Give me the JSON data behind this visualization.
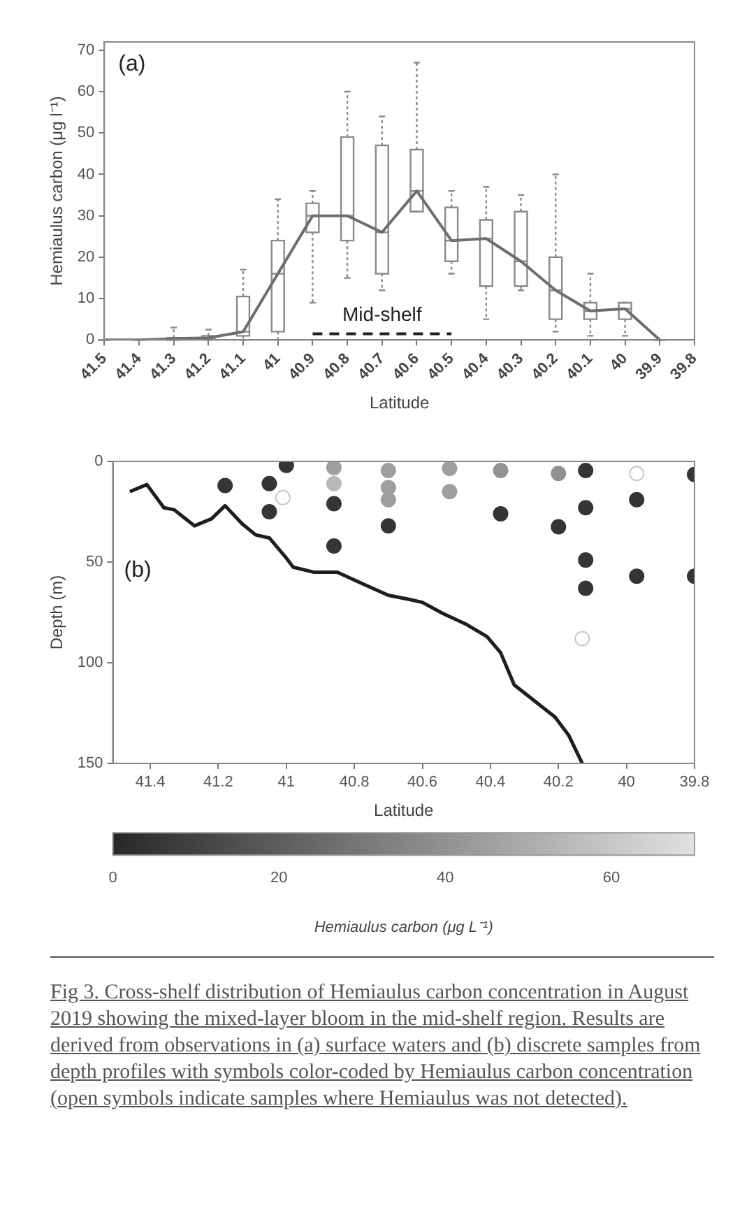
{
  "chart_data": [
    {
      "type": "box",
      "xlabel": "Latitude",
      "ylabel": "Hemiaulus carbon (μg l⁻¹)",
      "categories": [
        "41.5",
        "41.4",
        "41.3",
        "41.2",
        "41.1",
        "41",
        "40.9",
        "40.8",
        "40.7",
        "40.6",
        "40.5",
        "40.4",
        "40.3",
        "40.2",
        "40.1",
        "40",
        "39.9",
        "39.8"
      ],
      "ylim": [
        0,
        72
      ],
      "yticks": [
        0,
        10,
        20,
        30,
        40,
        50,
        60,
        70
      ],
      "series": [
        {
          "type": "box",
          "color": "#8a8a8a",
          "boxes": [
            {
              "low": 0,
              "q1": 0,
              "median": 0,
              "q3": 0,
              "high": 0
            },
            {
              "low": 0,
              "q1": 0,
              "median": 0,
              "q3": 0,
              "high": 0
            },
            {
              "low": 0,
              "q1": 0,
              "median": 0.3,
              "q3": 0.5,
              "high": 3
            },
            {
              "low": 0,
              "q1": 0.2,
              "median": 0.5,
              "q3": 1,
              "high": 2.5
            },
            {
              "low": 0,
              "q1": 1,
              "median": 2,
              "q3": 10.5,
              "high": 17
            },
            {
              "low": 0,
              "q1": 2,
              "median": 16,
              "q3": 24,
              "high": 34
            },
            {
              "low": 9,
              "q1": 26,
              "median": 30,
              "q3": 33,
              "high": 36
            },
            {
              "low": 15,
              "q1": 24,
              "median": 30,
              "q3": 49,
              "high": 60
            },
            {
              "low": 12,
              "q1": 16,
              "median": 26,
              "q3": 47,
              "high": 54
            },
            {
              "low": 31,
              "q1": 31,
              "median": 36,
              "q3": 46,
              "high": 67
            },
            {
              "low": 16,
              "q1": 19,
              "median": 24,
              "q3": 32,
              "high": 36
            },
            {
              "low": 5,
              "q1": 13,
              "median": 24.5,
              "q3": 29,
              "high": 37
            },
            {
              "low": 12,
              "q1": 13,
              "median": 19,
              "q3": 31,
              "high": 35
            },
            {
              "low": 2,
              "q1": 5,
              "median": 12,
              "q3": 20,
              "high": 40
            },
            {
              "low": 1,
              "q1": 5,
              "median": 7,
              "q3": 9,
              "high": 16
            },
            {
              "low": 1,
              "q1": 5,
              "median": 7.5,
              "q3": 9,
              "high": 9
            },
            {
              "low": 0,
              "q1": 0,
              "median": 0,
              "q3": 0,
              "high": 0
            },
            null
          ]
        },
        {
          "type": "line",
          "color": "#6e6e6e",
          "values": [
            0,
            0,
            0.3,
            0.5,
            2,
            16,
            30,
            30,
            26,
            36,
            24,
            24.5,
            19,
            12,
            7,
            7.5,
            0,
            null
          ]
        },
        {
          "type": "line",
          "name": "Mid-shelf",
          "color": "#222222",
          "line_style": "dashed",
          "values": [
            null,
            null,
            null,
            null,
            null,
            null,
            1.5,
            1.5,
            1.5,
            1.5,
            1.5,
            null,
            null,
            null,
            null,
            null,
            null,
            null
          ]
        }
      ],
      "annotations": [
        "(a)"
      ]
    },
    {
      "type": "scatter",
      "xlabel": "Latitude",
      "ylabel": "Depth (m)",
      "xlim": [
        41.51,
        39.8
      ],
      "xticks": [
        41.4,
        41.2,
        41,
        40.8,
        40.6,
        40.4,
        40.2,
        40,
        39.8
      ],
      "ylim": [
        150,
        0
      ],
      "yticks": [
        0,
        50,
        100,
        150
      ],
      "clim": [
        0,
        70
      ],
      "cticks": [
        0,
        20,
        40,
        60
      ],
      "clabel": "Hemiaulus carbon (μg L⁻¹)",
      "series": [
        {
          "type": "scatter",
          "marker": "circle",
          "x": [
            41.0,
            41.18,
            41.05,
            41.05,
            40.86,
            40.86,
            40.86,
            40.86,
            40.7,
            40.7,
            40.7,
            40.7,
            40.52,
            40.52,
            40.37,
            40.37,
            40.2,
            40.2,
            40.12,
            40.12,
            40.12,
            40.12,
            39.97,
            39.97,
            39.8,
            39.8
          ],
          "values": [
            2,
            12,
            11,
            25,
            3,
            11,
            21,
            42,
            4.5,
            13,
            19,
            32,
            3.5,
            15,
            4.5,
            26,
            6,
            32.5,
            4.5,
            23,
            49,
            63,
            19,
            57,
            6.5,
            57
          ],
          "colors": [
            "#353535",
            "#353535",
            "#353535",
            "#353535",
            "#9f9f9f",
            "#b9b9b9",
            "#353535",
            "#353535",
            "#9f9f9f",
            "#9f9f9f",
            "#9f9f9f",
            "#353535",
            "#9f9f9f",
            "#9f9f9f",
            "#929292",
            "#353535",
            "#929292",
            "#353535",
            "#353535",
            "#353535",
            "#353535",
            "#353535",
            "#353535",
            "#353535",
            "#353535",
            "#353535"
          ],
          "cvalues": [
            5,
            5,
            5,
            5,
            45,
            55,
            5,
            5,
            45,
            45,
            45,
            5,
            45,
            45,
            40,
            5,
            40,
            5,
            5,
            5,
            5,
            5,
            5,
            5,
            5,
            5
          ]
        },
        {
          "type": "scatter",
          "marker": "circle",
          "color": "#c8c8c8",
          "x": [
            41.01,
            39.97,
            40.13
          ],
          "values": [
            18,
            6,
            88
          ]
        },
        {
          "type": "line",
          "color": "#1e1e1e",
          "x": [
            41.46,
            41.41,
            41.36,
            41.33,
            41.27,
            41.22,
            41.18,
            41.13,
            41.09,
            41.05,
            41.0,
            40.98,
            40.92,
            40.85,
            40.76,
            40.7,
            40.64,
            40.6,
            40.54,
            40.47,
            40.41,
            40.37,
            40.33,
            40.27,
            40.21,
            40.17,
            40.14,
            40.13
          ],
          "values": [
            15,
            11.5,
            23,
            24,
            32,
            28.5,
            22,
            31,
            36.5,
            38,
            48,
            52.5,
            55,
            55,
            62,
            66.5,
            68.5,
            70,
            75.5,
            81,
            87,
            95,
            111,
            119,
            127,
            136,
            146.5,
            150
          ]
        }
      ],
      "annotations": [
        "(b)",
        "Fig 3. Cross-shelf distribution of Hemiaulus carbon concentration in August 2019 showing the mixed-layer bloom in the mid-shelf region.  Results are derived from observations in (a) surface waters and (b) discrete samples from depth profiles with symbols color-coded by Hemiaulus carbon concentration (open symbols indicate samples where Hemiaulus was not detected)."
      ]
    }
  ]
}
